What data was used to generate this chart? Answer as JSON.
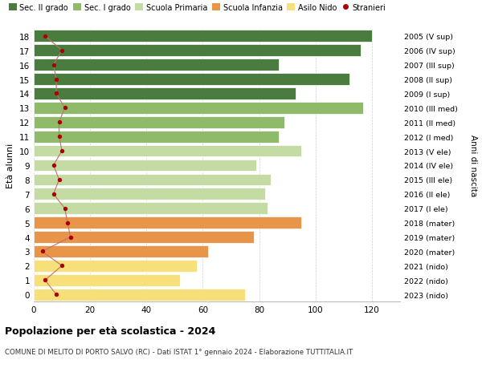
{
  "ages": [
    0,
    1,
    2,
    3,
    4,
    5,
    6,
    7,
    8,
    9,
    10,
    11,
    12,
    13,
    14,
    15,
    16,
    17,
    18
  ],
  "anni_nascita": [
    "2023 (nido)",
    "2022 (nido)",
    "2021 (nido)",
    "2020 (mater)",
    "2019 (mater)",
    "2018 (mater)",
    "2017 (I ele)",
    "2016 (II ele)",
    "2015 (III ele)",
    "2014 (IV ele)",
    "2013 (V ele)",
    "2012 (I med)",
    "2011 (II med)",
    "2010 (III med)",
    "2009 (I sup)",
    "2008 (II sup)",
    "2007 (III sup)",
    "2006 (IV sup)",
    "2005 (V sup)"
  ],
  "bar_values": [
    75,
    52,
    58,
    62,
    78,
    95,
    83,
    82,
    84,
    79,
    95,
    87,
    89,
    117,
    93,
    112,
    87,
    116,
    120
  ],
  "bar_colors": [
    "#f7e07a",
    "#f7e07a",
    "#f7e07a",
    "#e8954a",
    "#e8954a",
    "#e8954a",
    "#c5dba4",
    "#c5dba4",
    "#c5dba4",
    "#c5dba4",
    "#c5dba4",
    "#8fba6a",
    "#8fba6a",
    "#8fba6a",
    "#4a7c3f",
    "#4a7c3f",
    "#4a7c3f",
    "#4a7c3f",
    "#4a7c3f"
  ],
  "stranieri_values": [
    8,
    4,
    10,
    3,
    13,
    12,
    11,
    7,
    9,
    7,
    10,
    9,
    9,
    11,
    8,
    8,
    7,
    10,
    4
  ],
  "legend_labels": [
    "Sec. II grado",
    "Sec. I grado",
    "Scuola Primaria",
    "Scuola Infanzia",
    "Asilo Nido",
    "Stranieri"
  ],
  "legend_colors": [
    "#4a7c3f",
    "#8fba6a",
    "#c5dba4",
    "#e8954a",
    "#f7e07a",
    "#cc0000"
  ],
  "ylabel": "Età alunni",
  "ylabel2": "Anni di nascita",
  "title": "Popolazione per età scolastica - 2024",
  "subtitle": "COMUNE DI MELITO DI PORTO SALVO (RC) - Dati ISTAT 1° gennaio 2024 - Elaborazione TUTTITALIA.IT",
  "xlim": [
    0,
    130
  ],
  "xticks": [
    0,
    20,
    40,
    60,
    80,
    100,
    120
  ],
  "background_color": "#ffffff",
  "grid_color": "#cccccc",
  "bar_height": 0.82,
  "stranieri_color": "#aa0000",
  "stranieri_line_color": "#c07070"
}
